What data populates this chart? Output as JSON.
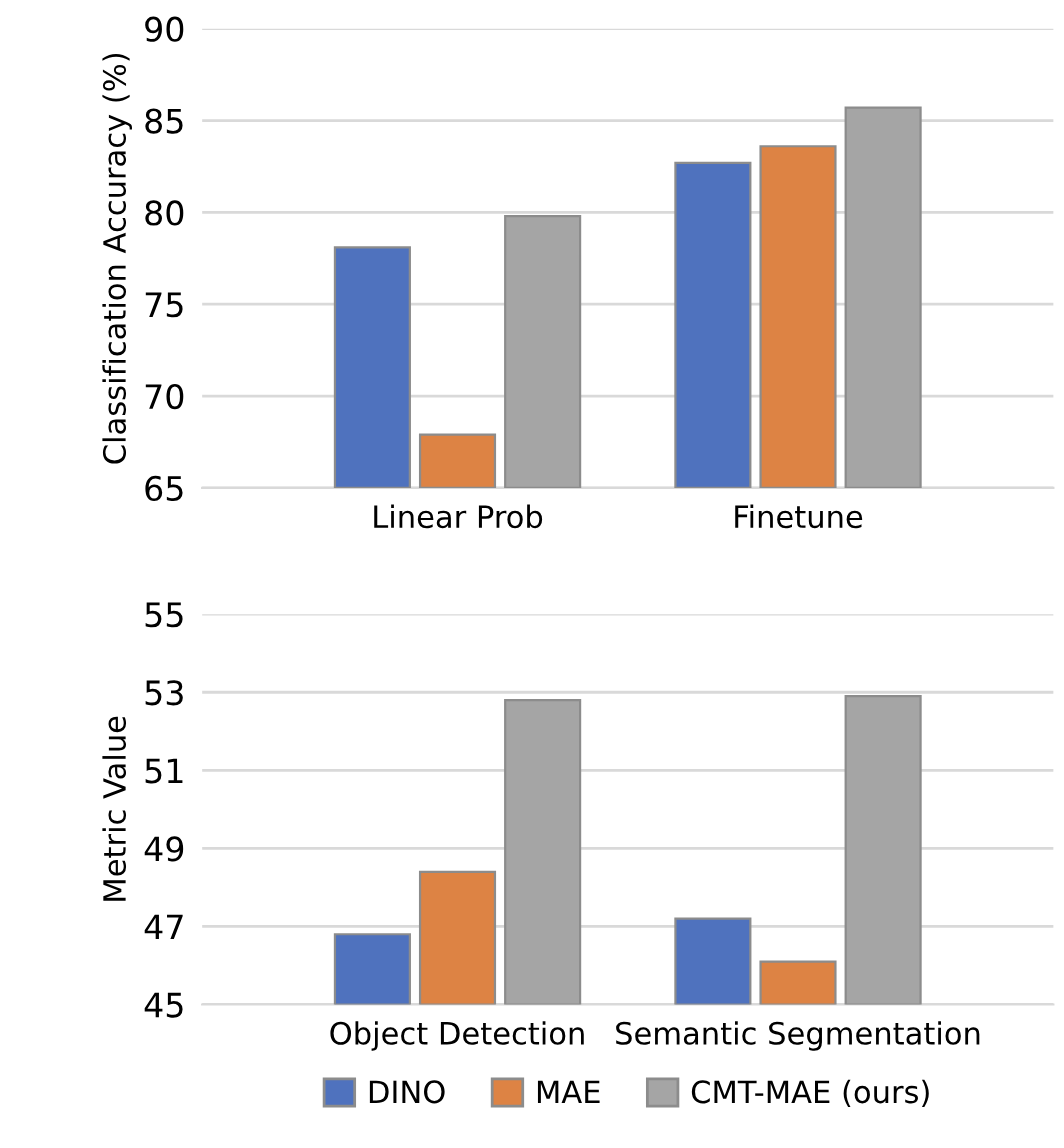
{
  "chart_data": [
    {
      "type": "bar",
      "ylabel": "Classification Accuracy (%)",
      "categories": [
        "Linear Prob",
        "Finetune"
      ],
      "series": [
        {
          "color": "#4f72be",
          "values": [
            78.1,
            82.7
          ]
        },
        {
          "color": "#dd8344",
          "values": [
            67.9,
            83.6
          ]
        },
        {
          "color": "#a5a5a5",
          "values": [
            79.8,
            85.7
          ]
        }
      ],
      "ylim": [
        65,
        90
      ],
      "yticks": [
        65,
        70,
        75,
        80,
        85,
        90
      ],
      "grid": "y"
    },
    {
      "type": "bar",
      "ylabel": "Metric Value",
      "categories": [
        "Object Detection",
        "Semantic Segmentation"
      ],
      "series": [
        {
          "name": "DINO",
          "color": "#4f72be",
          "values": [
            46.8,
            47.2
          ]
        },
        {
          "name": "MAE",
          "color": "#dd8344",
          "values": [
            48.4,
            46.1
          ]
        },
        {
          "name": "CMT-MAE (ours)",
          "color": "#a5a5a5",
          "values": [
            52.8,
            52.9
          ]
        }
      ],
      "ylim": [
        45,
        55
      ],
      "yticks": [
        45,
        47,
        49,
        51,
        53,
        55
      ],
      "grid": "y",
      "legend": "bottom"
    }
  ]
}
